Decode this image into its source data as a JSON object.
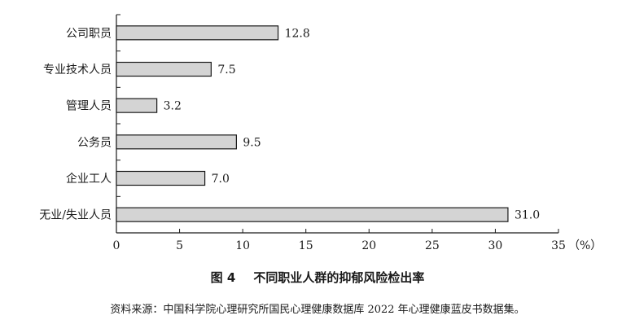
{
  "figure": {
    "number": "图 4",
    "title": "不同职业人群的抑郁风险检出率",
    "source": "资料来源：中国科学院心理研究所国民心理健康数据库 2022 年心理健康蓝皮书数据集。"
  },
  "chart_data": {
    "type": "bar",
    "orientation": "horizontal",
    "categories": [
      "公司职员",
      "专业技术人员",
      "管理人员",
      "公务员",
      "企业工人",
      "无业/失业人员"
    ],
    "values": [
      12.8,
      7.5,
      3.2,
      9.5,
      7.0,
      31.0
    ],
    "value_labels": [
      "12.8",
      "7.5",
      "3.2",
      "9.5",
      "7.0",
      "31.0"
    ],
    "xlim": [
      0,
      35
    ],
    "xticks": [
      0,
      5,
      10,
      15,
      20,
      25,
      30,
      35
    ],
    "xtick_labels": [
      "0",
      "5",
      "10",
      "15",
      "20",
      "25",
      "30",
      "35"
    ],
    "unit_label": "（%）",
    "grid": false,
    "legend": "none",
    "colors": {
      "bar_fill": "#d4d4d4",
      "bar_stroke": "#1a1a1a",
      "axis": "#1a1a1a"
    }
  }
}
